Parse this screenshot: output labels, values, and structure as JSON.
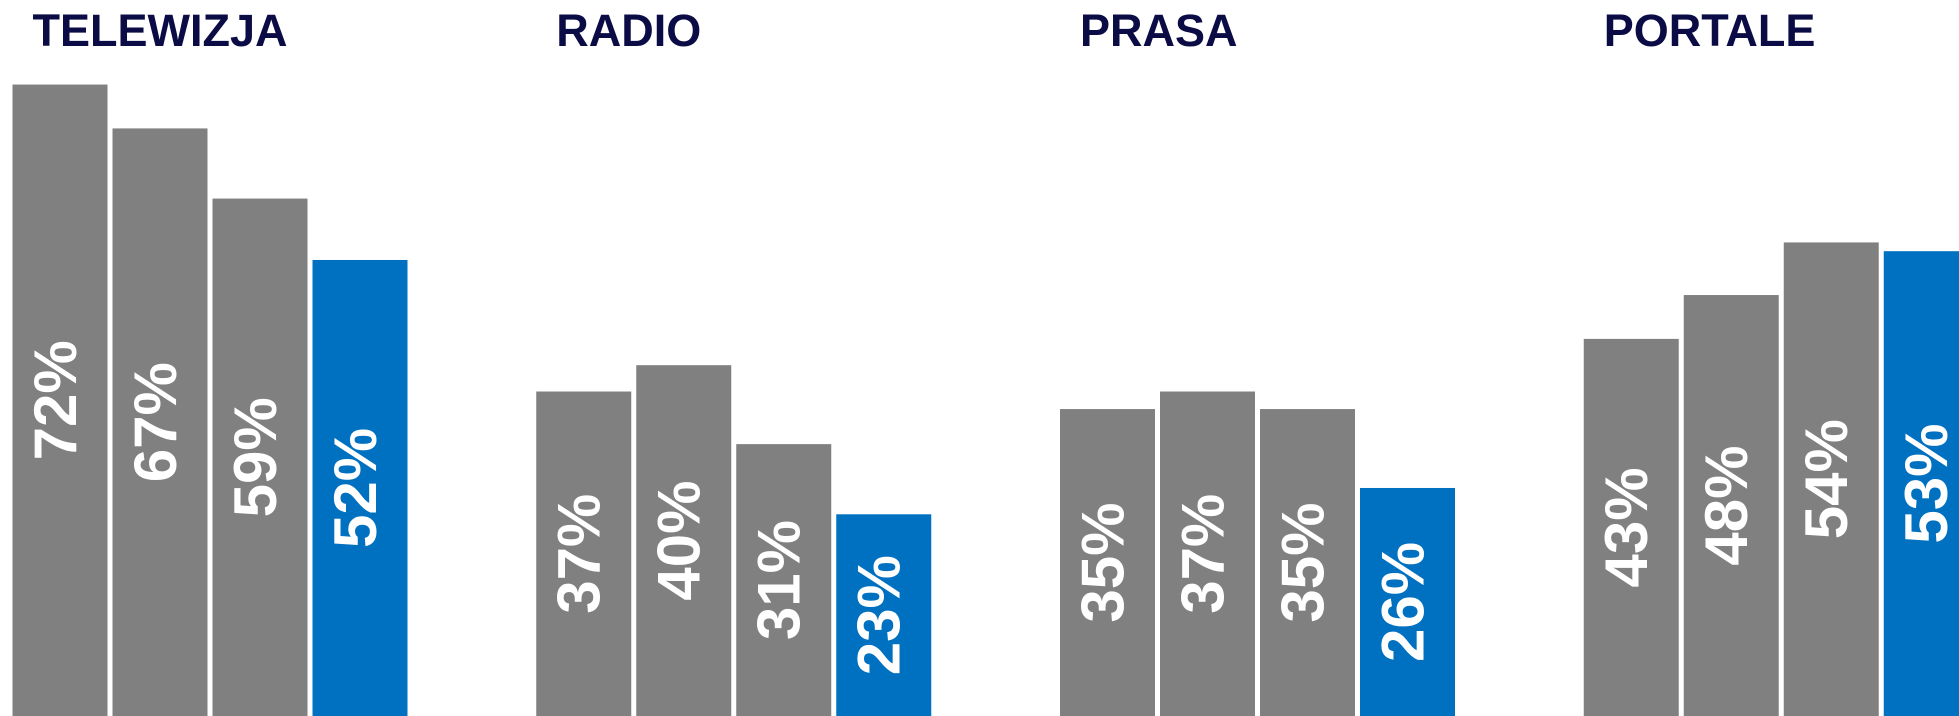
{
  "chart_data": [
    {
      "type": "bar",
      "title": "TELEWIZJA",
      "values": [
        72,
        67,
        59,
        52
      ],
      "value_labels": [
        "72%",
        "67%",
        "59%",
        "52%"
      ],
      "colors": [
        "#808080",
        "#808080",
        "#808080",
        "#0070c0"
      ]
    },
    {
      "type": "bar",
      "title": "RADIO",
      "values": [
        37,
        40,
        31,
        23
      ],
      "value_labels": [
        "37%",
        "40%",
        "31%",
        "23%"
      ],
      "colors": [
        "#808080",
        "#808080",
        "#808080",
        "#0070c0"
      ]
    },
    {
      "type": "bar",
      "title": "PRASA",
      "values": [
        35,
        37,
        35,
        26
      ],
      "value_labels": [
        "35%",
        "37%",
        "35%",
        "26%"
      ],
      "colors": [
        "#808080",
        "#808080",
        "#808080",
        "#0070c0"
      ]
    },
    {
      "type": "bar",
      "title": "PORTALE",
      "values": [
        43,
        48,
        54,
        53
      ],
      "value_labels": [
        "43%",
        "48%",
        "54%",
        "53%"
      ],
      "colors": [
        "#808080",
        "#808080",
        "#808080",
        "#0070c0"
      ]
    }
  ]
}
